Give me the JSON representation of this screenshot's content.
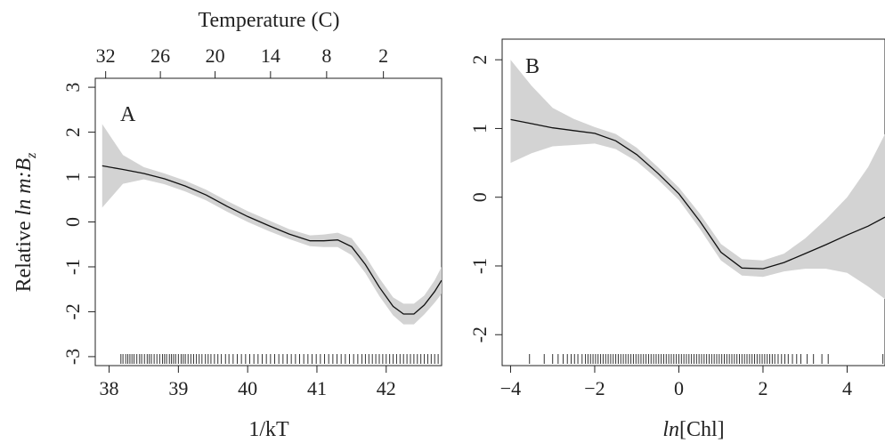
{
  "chart_data": [
    {
      "type": "line",
      "panel_label": "A",
      "xlabel": "1/kT",
      "ylabel": "Relative ln m:B_z",
      "ylabel_parts": {
        "prefix": "Relative ",
        "italic": "ln m:B",
        "sub": "z"
      },
      "top_axis_title": "Temperature (C)",
      "top_ticks": [
        "32",
        "26",
        "20",
        "14",
        "8",
        "2"
      ],
      "top_tick_positions": [
        37.95,
        38.74,
        39.53,
        40.33,
        41.14,
        41.96
      ],
      "xlim": [
        37.8,
        42.8
      ],
      "ylim": [
        -3.2,
        3.2
      ],
      "xticks": [
        38,
        39,
        40,
        41,
        42
      ],
      "yticks": [
        3,
        2,
        1,
        0,
        -1,
        -2,
        -3
      ],
      "grid": false,
      "x": [
        37.9,
        38.2,
        38.5,
        38.8,
        39.1,
        39.4,
        39.7,
        40.0,
        40.3,
        40.6,
        40.9,
        41.1,
        41.3,
        41.5,
        41.7,
        41.9,
        42.1,
        42.25,
        42.4,
        42.55,
        42.7,
        42.8
      ],
      "y": [
        1.25,
        1.17,
        1.08,
        0.96,
        0.8,
        0.6,
        0.35,
        0.12,
        -0.08,
        -0.27,
        -0.42,
        -0.42,
        -0.4,
        -0.55,
        -0.95,
        -1.45,
        -1.88,
        -2.05,
        -2.05,
        -1.85,
        -1.55,
        -1.3
      ],
      "lower": [
        0.32,
        0.85,
        0.95,
        0.84,
        0.68,
        0.48,
        0.23,
        0.0,
        -0.2,
        -0.38,
        -0.54,
        -0.56,
        -0.56,
        -0.74,
        -1.14,
        -1.65,
        -2.08,
        -2.28,
        -2.28,
        -2.06,
        -1.8,
        -1.6
      ],
      "upper": [
        2.18,
        1.49,
        1.22,
        1.08,
        0.92,
        0.72,
        0.47,
        0.24,
        0.04,
        -0.16,
        -0.3,
        -0.28,
        -0.24,
        -0.36,
        -0.76,
        -1.25,
        -1.68,
        -1.82,
        -1.82,
        -1.64,
        -1.3,
        -1.0
      ],
      "rug": [
        38.17,
        38.2,
        38.24,
        38.27,
        38.3,
        38.33,
        38.36,
        38.4,
        38.44,
        38.47,
        38.51,
        38.55,
        38.58,
        38.61,
        38.65,
        38.69,
        38.73,
        38.77,
        38.8,
        38.83,
        38.87,
        38.9,
        38.93,
        38.96,
        39.0,
        39.04,
        39.07,
        39.1,
        39.14,
        39.18,
        39.22,
        39.26,
        39.3,
        39.34,
        39.39,
        39.43,
        39.47,
        39.52,
        39.57,
        39.62,
        39.68,
        39.73,
        39.79,
        39.85,
        39.91,
        39.97,
        40.03,
        40.09,
        40.15,
        40.21,
        40.27,
        40.33,
        40.39,
        40.45,
        40.51,
        40.57,
        40.63,
        40.69,
        40.75,
        40.81,
        40.87,
        40.93,
        40.99,
        41.05,
        41.11,
        41.17,
        41.23,
        41.29,
        41.35,
        41.41,
        41.47,
        41.53,
        41.59,
        41.65,
        41.7,
        41.75,
        41.8,
        41.85,
        41.9,
        41.95,
        42.0,
        42.05,
        42.1,
        42.15,
        42.2,
        42.25,
        42.3,
        42.35,
        42.4,
        42.45,
        42.5,
        42.55,
        42.6,
        42.65,
        42.7,
        42.75
      ]
    },
    {
      "type": "line",
      "panel_label": "B",
      "xlabel": "ln[Chl]",
      "xlabel_parts": {
        "italic": "ln",
        "rest": "[Chl]"
      },
      "xlim": [
        -4.2,
        4.9
      ],
      "ylim": [
        -2.45,
        2.3
      ],
      "xticks": [
        -4,
        -2,
        0,
        2,
        4
      ],
      "yticks": [
        2,
        1,
        0,
        -1,
        -2
      ],
      "grid": false,
      "x": [
        -4.0,
        -3.5,
        -3.0,
        -2.5,
        -2.0,
        -1.5,
        -1.0,
        -0.5,
        0.0,
        0.5,
        1.0,
        1.5,
        2.0,
        2.5,
        3.0,
        3.5,
        4.0,
        4.5,
        4.9
      ],
      "y": [
        1.13,
        1.07,
        1.01,
        0.97,
        0.93,
        0.82,
        0.62,
        0.35,
        0.05,
        -0.35,
        -0.8,
        -1.03,
        -1.04,
        -0.95,
        -0.82,
        -0.69,
        -0.55,
        -0.42,
        -0.29
      ],
      "lower": [
        0.5,
        0.64,
        0.74,
        0.76,
        0.78,
        0.7,
        0.52,
        0.26,
        -0.04,
        -0.46,
        -0.92,
        -1.14,
        -1.16,
        -1.08,
        -1.04,
        -1.04,
        -1.1,
        -1.3,
        -1.48
      ],
      "upper": [
        2.0,
        1.62,
        1.3,
        1.14,
        1.02,
        0.92,
        0.72,
        0.44,
        0.14,
        -0.24,
        -0.68,
        -0.9,
        -0.92,
        -0.82,
        -0.6,
        -0.32,
        0.0,
        0.44,
        0.92
      ],
      "rug": [
        -3.55,
        -3.2,
        -3.0,
        -2.87,
        -2.75,
        -2.65,
        -2.56,
        -2.48,
        -2.4,
        -2.3,
        -2.22,
        -2.16,
        -2.1,
        -2.04,
        -1.98,
        -1.92,
        -1.86,
        -1.8,
        -1.74,
        -1.68,
        -1.62,
        -1.56,
        -1.5,
        -1.44,
        -1.38,
        -1.32,
        -1.26,
        -1.2,
        -1.14,
        -1.08,
        -1.02,
        -0.96,
        -0.9,
        -0.84,
        -0.78,
        -0.72,
        -0.66,
        -0.6,
        -0.54,
        -0.48,
        -0.42,
        -0.36,
        -0.3,
        -0.24,
        -0.18,
        -0.12,
        -0.06,
        0.0,
        0.06,
        0.12,
        0.18,
        0.24,
        0.3,
        0.36,
        0.42,
        0.48,
        0.54,
        0.6,
        0.66,
        0.72,
        0.78,
        0.84,
        0.9,
        0.96,
        1.02,
        1.08,
        1.14,
        1.2,
        1.26,
        1.32,
        1.38,
        1.44,
        1.5,
        1.56,
        1.62,
        1.68,
        1.74,
        1.8,
        1.86,
        1.92,
        1.98,
        2.04,
        2.1,
        2.16,
        2.22,
        2.28,
        2.36,
        2.44,
        2.52,
        2.6,
        2.7,
        2.8,
        2.9,
        3.05,
        3.2,
        3.4,
        3.55,
        4.85
      ]
    }
  ]
}
